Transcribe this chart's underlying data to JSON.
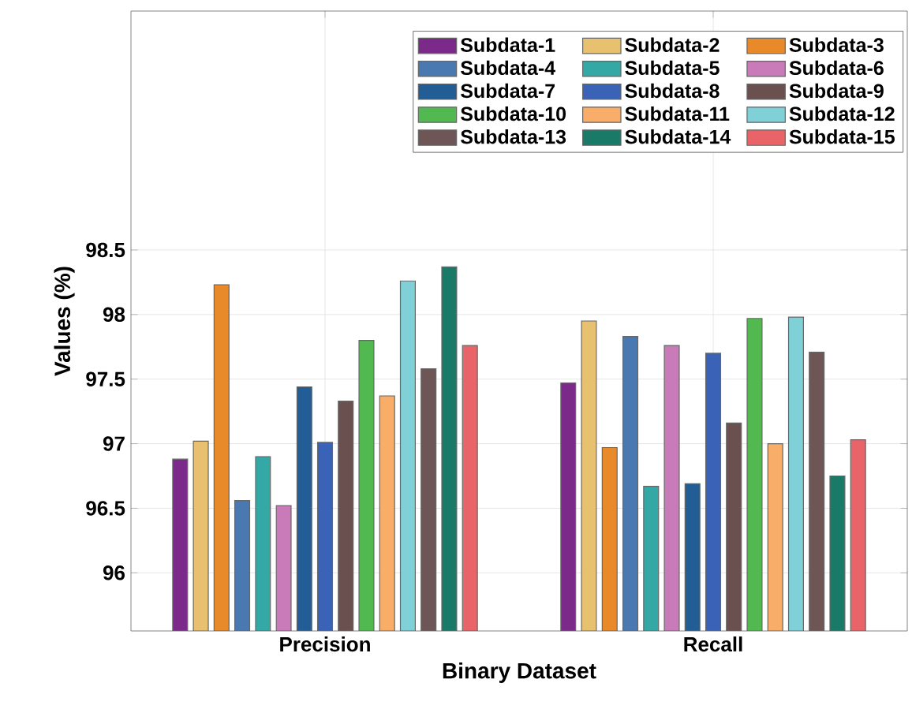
{
  "chart_data": {
    "type": "bar",
    "xlabel": "Binary Dataset",
    "ylabel": "Values (%)",
    "categories": [
      "Precision",
      "Recall"
    ],
    "ylim": [
      95.55,
      100.35
    ],
    "yticks": [
      96,
      96.5,
      97,
      97.5,
      98,
      98.5
    ],
    "grid": true,
    "legend": "top right",
    "series": [
      {
        "name": "Subdata-1",
        "color": "#7b2a8a",
        "values": [
          96.88,
          97.47
        ]
      },
      {
        "name": "Subdata-2",
        "color": "#e8c170",
        "values": [
          97.02,
          97.95
        ]
      },
      {
        "name": "Subdata-3",
        "color": "#e8892a",
        "values": [
          98.23,
          96.97
        ]
      },
      {
        "name": "Subdata-4",
        "color": "#4a78b0",
        "values": [
          96.56,
          97.83
        ]
      },
      {
        "name": "Subdata-5",
        "color": "#33a8a5",
        "values": [
          96.9,
          96.67
        ]
      },
      {
        "name": "Subdata-6",
        "color": "#c97ab8",
        "values": [
          96.52,
          97.76
        ]
      },
      {
        "name": "Subdata-7",
        "color": "#235d96",
        "values": [
          97.44,
          96.69
        ]
      },
      {
        "name": "Subdata-8",
        "color": "#3a62b6",
        "values": [
          97.01,
          97.7
        ]
      },
      {
        "name": "Subdata-9",
        "color": "#6b5050",
        "values": [
          97.33,
          97.16
        ]
      },
      {
        "name": "Subdata-10",
        "color": "#52b850",
        "values": [
          97.8,
          97.97
        ]
      },
      {
        "name": "Subdata-11",
        "color": "#f8ad68",
        "values": [
          97.37,
          97.0
        ]
      },
      {
        "name": "Subdata-12",
        "color": "#80d0d8",
        "values": [
          98.26,
          97.98
        ]
      },
      {
        "name": "Subdata-13",
        "color": "#6e5656",
        "values": [
          97.58,
          97.71
        ]
      },
      {
        "name": "Subdata-14",
        "color": "#1a7a68",
        "values": [
          98.37,
          96.75
        ]
      },
      {
        "name": "Subdata-15",
        "color": "#e86468",
        "values": [
          97.76,
          97.03
        ]
      }
    ]
  }
}
